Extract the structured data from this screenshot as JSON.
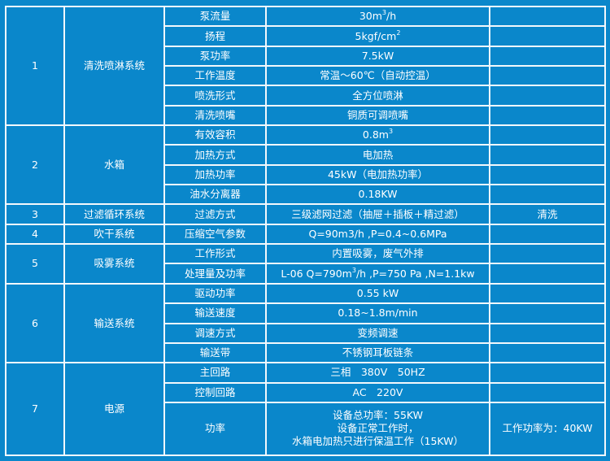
{
  "colors": {
    "background": "#0a87cb",
    "grid_lines": "#ffffff",
    "text": "#ffffff"
  },
  "groups": [
    {
      "no": "1",
      "system": "清洗喷淋系统",
      "items": [
        {
          "param": "泵流量",
          "value": [
            [
              "30m"
            ],
            [
              "3",
              "sup"
            ],
            [
              "/h"
            ]
          ],
          "remark": ""
        },
        {
          "param": "扬程",
          "value": [
            [
              "5kgf/cm"
            ],
            [
              "2",
              "sup"
            ]
          ],
          "remark": ""
        },
        {
          "param": "泵功率",
          "value": [
            [
              "7.5kW"
            ]
          ],
          "remark": ""
        },
        {
          "param": "工作温度",
          "value": [
            [
              "常温～60℃（自动控温）"
            ]
          ],
          "remark": ""
        },
        {
          "param": "喷洗形式",
          "value": [
            [
              "全方位喷淋"
            ]
          ],
          "remark": ""
        },
        {
          "param": "清洗喷嘴",
          "value": [
            [
              "铜质可调喷嘴"
            ]
          ],
          "remark": ""
        }
      ]
    },
    {
      "no": "2",
      "system": "水箱",
      "items": [
        {
          "param": "有效容积",
          "value": [
            [
              "0.8m"
            ],
            [
              "3",
              "sup"
            ]
          ],
          "remark": ""
        },
        {
          "param": "加热方式",
          "value": [
            [
              "电加热"
            ]
          ],
          "remark": ""
        },
        {
          "param": "加热功率",
          "value": [
            [
              "45kW（电加热功率）"
            ]
          ],
          "remark": ""
        },
        {
          "param": "油水分离器",
          "value": [
            [
              "0.18KW"
            ]
          ],
          "remark": ""
        }
      ]
    },
    {
      "no": "3",
      "system": "过滤循环系统",
      "items": [
        {
          "param": "过滤方式",
          "value": [
            [
              "三级滤网过滤（抽屉＋插板＋精过滤）"
            ]
          ],
          "remark": "清洗"
        }
      ]
    },
    {
      "no": "4",
      "system": "吹干系统",
      "items": [
        {
          "param": "压缩空气参数",
          "value": [
            [
              "Q=90m3/h ,P=0.4~0.6MPa"
            ]
          ],
          "remark": ""
        }
      ]
    },
    {
      "no": "5",
      "system": "吸雾系统",
      "items": [
        {
          "param": "工作形式",
          "value": [
            [
              "内置吸雾，废气外排"
            ]
          ],
          "remark": ""
        },
        {
          "param": "处理量及功率",
          "value": [
            [
              "L-06 Q=790m"
            ],
            [
              "3",
              "sup"
            ],
            [
              "/h ,P=750 Pa ,N=1.1kw"
            ]
          ],
          "remark": ""
        }
      ]
    },
    {
      "no": "6",
      "system": "输送系统",
      "items": [
        {
          "param": "驱动功率",
          "value": [
            [
              "0.55 kW"
            ]
          ],
          "remark": ""
        },
        {
          "param": "输送速度",
          "value": [
            [
              "0.18~1.8m/min"
            ]
          ],
          "remark": ""
        },
        {
          "param": "调速方式",
          "value": [
            [
              "变频调速"
            ]
          ],
          "remark": ""
        },
        {
          "param": "输送带",
          "value": [
            [
              "不锈钢耳板链条"
            ]
          ],
          "remark": ""
        }
      ]
    },
    {
      "no": "7",
      "system": "电源",
      "items": [
        {
          "param": "主回路",
          "value": [
            [
              "三相　380V　50HZ"
            ]
          ],
          "remark": ""
        },
        {
          "param": "控制回路",
          "value": [
            [
              "AC　220V"
            ]
          ],
          "remark": ""
        },
        {
          "param": "功率",
          "value": [
            [
              "设备总功率：55KW"
            ],
            [
              "",
              "br"
            ],
            [
              "设备正常工作时，"
            ],
            [
              "",
              "br"
            ],
            [
              "水箱电加热只进行保温工作（15KW）"
            ]
          ],
          "remark": "工作功率为：40KW",
          "tall": true
        }
      ]
    }
  ]
}
